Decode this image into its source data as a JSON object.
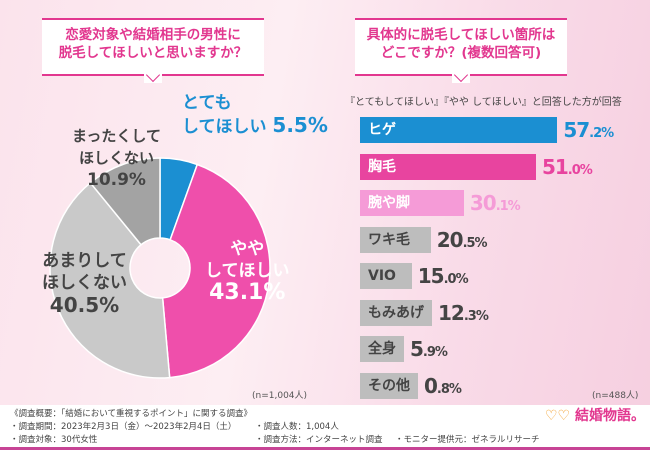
{
  "left": {
    "question": [
      "恋愛対象や結婚相手の男性に",
      "脱毛してほしいと思いますか？"
    ],
    "note": "(n=1,004人)",
    "chart_data": {
      "type": "pie",
      "donut": true,
      "slices": [
        {
          "label": [
            "とても",
            "してほしい"
          ],
          "value": 5.5,
          "display": "5.5%",
          "color": "#1b8fd2"
        },
        {
          "label": [
            "やや",
            "してほしい"
          ],
          "value": 43.1,
          "display": "43.1%",
          "color": "#ef4fab"
        },
        {
          "label": [
            "あまりして",
            "ほしくない"
          ],
          "value": 40.5,
          "display": "40.5%",
          "color": "#c9c9c9"
        },
        {
          "label": [
            "まったくして",
            "ほしくない"
          ],
          "value": 10.9,
          "display": "10.9%",
          "color": "#a3a3a3"
        }
      ]
    }
  },
  "right": {
    "question": [
      "具体的に脱毛してほしい箇所は",
      "どこですか？(複数回答可)"
    ],
    "subtitle": "『とてもしてほしい』『やや してほしい』と回答した方が回答",
    "note": "(n=488人)",
    "chart_data": {
      "type": "bar",
      "orientation": "horizontal",
      "categories": [
        "ヒゲ",
        "胸毛",
        "腕や脚",
        "ワキ毛",
        "VIO",
        "もみあげ",
        "全身",
        "その他"
      ],
      "values": [
        57.2,
        51.0,
        30.1,
        20.5,
        15.0,
        12.3,
        5.9,
        0.8
      ],
      "displays": [
        "57.2%",
        "51.0%",
        "30.1%",
        "20.5%",
        "15.0%",
        "12.3%",
        "5.9%",
        "0.8%"
      ],
      "colors": [
        "#1b8fd2",
        "#e8449f",
        "#f59bd7",
        "#bdbdbd",
        "#bdbdbd",
        "#bdbdbd",
        "#bdbdbd",
        "#bdbdbd"
      ],
      "value_colors": [
        "#1b8fd2",
        "#e8449f",
        "#f59bd7",
        "#444444",
        "#444444",
        "#444444",
        "#444444",
        "#444444"
      ]
    }
  },
  "footer": {
    "title": "《調査概要：「結婚において重視するポイント」に関する調査》",
    "period": "・調査期間：2023年2月3日（金）～2023年2月4日（土）",
    "target": "・調査対象：30代女性",
    "count": "・調査人数：1,004人",
    "method": "・調査方法：インターネット調査",
    "provider": "・モニター提供元：ゼネラルリサーチ",
    "logo": "結婚物語。"
  }
}
